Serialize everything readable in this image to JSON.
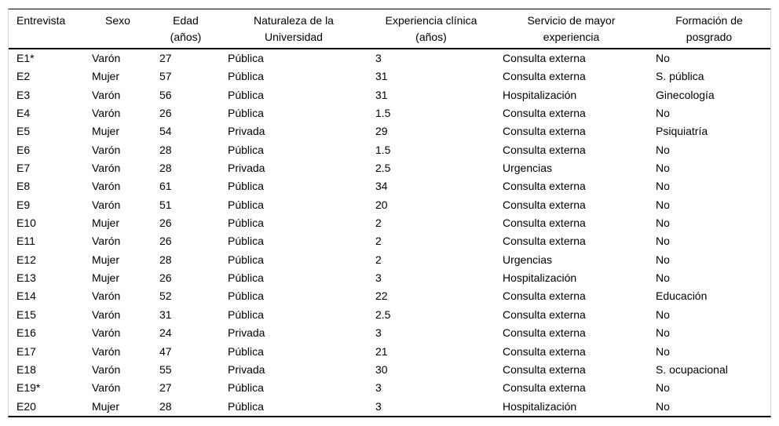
{
  "colors": {
    "rule": "#000000",
    "table_edge": "#d9d9d9",
    "text": "#000000",
    "background": "#ffffff"
  },
  "table": {
    "columns": [
      {
        "id": "entrevista",
        "header_lines": [
          "Entrevista"
        ]
      },
      {
        "id": "sexo",
        "header_lines": [
          "Sexo"
        ]
      },
      {
        "id": "edad",
        "header_lines": [
          "Edad",
          "(años)"
        ]
      },
      {
        "id": "naturaleza-universidad",
        "header_lines": [
          "Naturaleza de la",
          "Universidad"
        ]
      },
      {
        "id": "experiencia-clinica",
        "header_lines": [
          "Experiencia clínica",
          "(años)"
        ]
      },
      {
        "id": "servicio-mayor-experiencia",
        "header_lines": [
          "Servicio de mayor",
          "experiencia"
        ]
      },
      {
        "id": "formacion-posgrado",
        "header_lines": [
          "Formación de",
          "posgrado"
        ]
      }
    ],
    "rows": [
      [
        "E1*",
        "Varón",
        "27",
        "Pública",
        "3",
        "Consulta externa",
        "No"
      ],
      [
        "E2",
        "Mujer",
        "57",
        "Pública",
        "31",
        "Consulta externa",
        "S. pública"
      ],
      [
        "E3",
        "Varón",
        "56",
        "Pública",
        "31",
        "Hospitalización",
        "Ginecología"
      ],
      [
        "E4",
        "Varón",
        "26",
        "Pública",
        "1.5",
        "Consulta externa",
        "No"
      ],
      [
        "E5",
        "Mujer",
        "54",
        "Privada",
        "29",
        "Consulta externa",
        "Psiquiatría"
      ],
      [
        "E6",
        "Varón",
        "28",
        "Pública",
        "1.5",
        "Consulta externa",
        "No"
      ],
      [
        "E7",
        "Varón",
        "28",
        "Privada",
        "2.5",
        "Urgencias",
        "No"
      ],
      [
        "E8",
        "Varón",
        "61",
        "Pública",
        "34",
        "Consulta externa",
        "No"
      ],
      [
        "E9",
        "Varón",
        "51",
        "Pública",
        "20",
        "Consulta externa",
        "No"
      ],
      [
        "E10",
        "Mujer",
        "26",
        "Pública",
        "2",
        "Consulta externa",
        "No"
      ],
      [
        "E11",
        "Varón",
        "26",
        "Pública",
        "2",
        "Consulta externa",
        "No"
      ],
      [
        "E12",
        "Mujer",
        "28",
        "Pública",
        "2",
        "Urgencias",
        "No"
      ],
      [
        "E13",
        "Mujer",
        "26",
        "Pública",
        "3",
        "Hospitalización",
        "No"
      ],
      [
        "E14",
        "Varón",
        "52",
        "Pública",
        "22",
        "Consulta externa",
        "Educación"
      ],
      [
        "E15",
        "Varón",
        "31",
        "Pública",
        "2.5",
        "Consulta externa",
        "No"
      ],
      [
        "E16",
        "Varón",
        "24",
        "Privada",
        "3",
        "Consulta externa",
        "No"
      ],
      [
        "E17",
        "Varón",
        "47",
        "Pública",
        "21",
        "Consulta externa",
        "No"
      ],
      [
        "E18",
        "Varón",
        "55",
        "Privada",
        "30",
        "Consulta externa",
        "S. ocupacional"
      ],
      [
        "E19*",
        "Varón",
        "27",
        "Pública",
        "3",
        "Consulta externa",
        "No"
      ],
      [
        "E20",
        "Mujer",
        "28",
        "Pública",
        "3",
        "Hospitalización",
        "No"
      ]
    ]
  }
}
